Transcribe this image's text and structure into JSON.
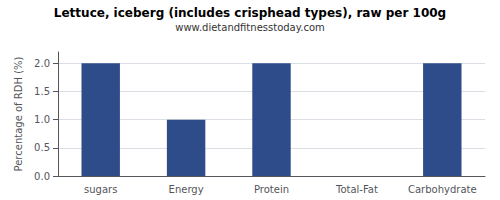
{
  "chart_data": {
    "type": "bar",
    "title": "Lettuce, iceberg (includes crisphead types), raw per 100g",
    "subtitle": "www.dietandfitnesstoday.com",
    "categories": [
      "sugars",
      "Energy",
      "Protein",
      "Total-Fat",
      "Carbohydrate"
    ],
    "values": [
      2.0,
      1.0,
      2.0,
      0.0,
      2.0
    ],
    "color": "#2e4b8a",
    "ylabel": "Percentage of RDH (%)",
    "ylim": [
      0,
      2.2
    ],
    "yticks": [
      {
        "value": 0,
        "label": "0.0"
      },
      0.5,
      {
        "value": 1,
        "label": "1.0"
      },
      1.5,
      {
        "value": 2,
        "label": "2.0"
      }
    ],
    "grid": true
  }
}
